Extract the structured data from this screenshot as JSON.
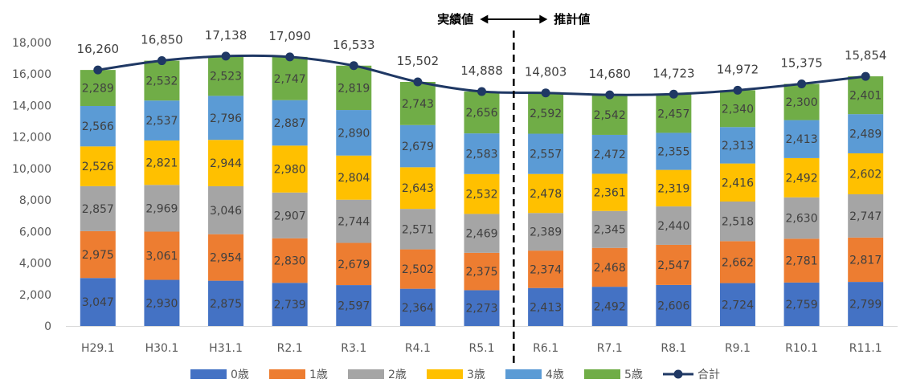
{
  "chart_data": {
    "type": "bar",
    "stacked": true,
    "categories": [
      "H29.1",
      "H30.1",
      "H31.1",
      "R2.1",
      "R3.1",
      "R4.1",
      "R5.1",
      "R6.1",
      "R7.1",
      "R8.1",
      "R9.1",
      "R10.1",
      "R11.1"
    ],
    "series": [
      {
        "name": "0歳",
        "color": "#4472C4",
        "values": [
          3047,
          2930,
          2875,
          2739,
          2597,
          2364,
          2273,
          2413,
          2492,
          2606,
          2724,
          2759,
          2799
        ]
      },
      {
        "name": "1歳",
        "color": "#ED7D31",
        "values": [
          2975,
          3061,
          2954,
          2830,
          2679,
          2502,
          2375,
          2374,
          2468,
          2547,
          2662,
          2781,
          2817
        ]
      },
      {
        "name": "2歳",
        "color": "#A5A5A5",
        "values": [
          2857,
          2969,
          3046,
          2907,
          2744,
          2571,
          2469,
          2389,
          2345,
          2440,
          2518,
          2630,
          2747
        ]
      },
      {
        "name": "3歳",
        "color": "#FFC000",
        "values": [
          2526,
          2821,
          2944,
          2980,
          2804,
          2643,
          2532,
          2478,
          2361,
          2319,
          2416,
          2492,
          2602
        ]
      },
      {
        "name": "4歳",
        "color": "#5B9BD5",
        "values": [
          2566,
          2537,
          2796,
          2887,
          2890,
          2679,
          2583,
          2557,
          2472,
          2355,
          2313,
          2413,
          2489
        ]
      },
      {
        "name": "5歳",
        "color": "#70AD47",
        "values": [
          2289,
          2532,
          2523,
          2747,
          2819,
          2743,
          2656,
          2592,
          2542,
          2457,
          2340,
          2300,
          2401
        ]
      }
    ],
    "line_series": {
      "name": "合計",
      "color": "#1F3864",
      "values": [
        16260,
        16850,
        17138,
        17090,
        16533,
        15502,
        14888,
        14803,
        14680,
        14723,
        14972,
        15375,
        15854
      ]
    },
    "ylim": [
      0,
      18000
    ],
    "yticks": [
      0,
      2000,
      4000,
      6000,
      8000,
      10000,
      12000,
      14000,
      16000,
      18000
    ],
    "divider_after_category": "R5.1",
    "annotations": {
      "left": "実績値",
      "right": "推計値"
    },
    "legend_position": "bottom",
    "grid": false
  }
}
